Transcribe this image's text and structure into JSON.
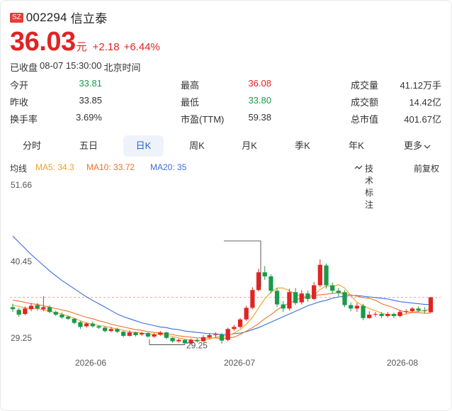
{
  "header": {
    "exchange": "SZ",
    "code": "002294",
    "name": "信立泰",
    "price": "36.03",
    "unit": "元",
    "change": "+2.18",
    "change_pct": "+6.44%",
    "status": "已收盘",
    "datetime": "08-07 15:30:00",
    "timezone": "北京时间"
  },
  "stats": [
    [
      {
        "label": "今开",
        "value": "33.81",
        "color": "green"
      },
      {
        "label": "最高",
        "value": "36.08",
        "color": "red"
      },
      {
        "label": "成交量",
        "value": "41.12万手",
        "color": "dark"
      }
    ],
    [
      {
        "label": "昨收",
        "value": "33.85",
        "color": "dark"
      },
      {
        "label": "最低",
        "value": "33.80",
        "color": "green"
      },
      {
        "label": "成交额",
        "value": "14.42亿",
        "color": "dark"
      }
    ],
    [
      {
        "label": "换手率",
        "value": "3.69%",
        "color": "dark"
      },
      {
        "label": "市盈(TTM)",
        "value": "59.38",
        "color": "dark"
      },
      {
        "label": "总市值",
        "value": "401.67亿",
        "color": "dark"
      }
    ]
  ],
  "tabs": [
    "分时",
    "五日",
    "日K",
    "周K",
    "月K",
    "季K",
    "年K",
    "更多"
  ],
  "active_tab": "日K",
  "ma": {
    "label": "均线",
    "ma5": "MA5: 34.3",
    "ma10": "MA10: 33.72",
    "ma20": "MA20: 35",
    "indicator": "技术标注",
    "adjust": "前复权"
  },
  "colors": {
    "up": "#e02424",
    "down": "#1a9a4a",
    "ma5": "#f0a020",
    "ma10": "#f07030",
    "ma20": "#3a6fd8",
    "accent": "#2a63c9"
  },
  "icons": [
    "chevron-down-icon",
    "wave-icon"
  ],
  "chart_data": {
    "type": "candlestick",
    "y_ticks": [
      "51.66",
      "40.45",
      "29.25"
    ],
    "x_ticks": [
      "2026-06",
      "2026-07",
      "2026-08"
    ],
    "ylim": [
      29.25,
      51.66
    ],
    "max_marker": "",
    "min_marker": "29.25",
    "last_close": 36.03,
    "candles": [
      [
        34.6,
        34.3,
        35.1,
        33.9
      ],
      [
        34.2,
        33.5,
        34.5,
        33.2
      ],
      [
        33.6,
        34.4,
        34.7,
        33.4
      ],
      [
        34.3,
        34.8,
        35.2,
        34.0
      ],
      [
        34.9,
        34.4,
        35.2,
        34.1
      ],
      [
        34.3,
        34.6,
        36.2,
        34.0
      ],
      [
        34.6,
        33.9,
        34.9,
        33.7
      ],
      [
        33.9,
        33.5,
        34.1,
        33.3
      ],
      [
        33.5,
        33.1,
        33.8,
        32.9
      ],
      [
        33.2,
        32.9,
        33.4,
        32.7
      ],
      [
        32.9,
        32.3,
        33.0,
        32.1
      ],
      [
        32.4,
        31.7,
        32.6,
        31.4
      ],
      [
        31.8,
        32.2,
        32.4,
        31.6
      ],
      [
        32.2,
        31.8,
        32.5,
        31.6
      ],
      [
        31.8,
        31.6,
        32.0,
        31.4
      ],
      [
        31.6,
        31.1,
        31.8,
        30.9
      ],
      [
        31.1,
        31.4,
        31.7,
        30.9
      ],
      [
        31.4,
        31.0,
        31.6,
        30.8
      ],
      [
        31.0,
        30.4,
        31.1,
        30.2
      ],
      [
        30.4,
        30.9,
        31.2,
        30.3
      ],
      [
        30.9,
        30.5,
        31.0,
        30.3
      ],
      [
        30.6,
        30.8,
        31.0,
        30.4
      ],
      [
        30.8,
        30.3,
        30.9,
        30.1
      ],
      [
        30.3,
        30.6,
        30.8,
        30.1
      ],
      [
        30.6,
        30.9,
        31.1,
        30.4
      ],
      [
        30.9,
        30.1,
        31.0,
        29.9
      ],
      [
        30.1,
        29.6,
        30.2,
        29.4
      ],
      [
        29.6,
        29.8,
        30.0,
        29.4
      ],
      [
        29.8,
        29.3,
        29.9,
        29.1
      ],
      [
        29.3,
        29.8,
        30.0,
        29.2
      ],
      [
        29.8,
        29.6,
        30.0,
        29.4
      ],
      [
        29.6,
        30.2,
        30.5,
        29.5
      ],
      [
        30.2,
        30.5,
        30.8,
        30.0
      ],
      [
        30.5,
        30.6,
        30.9,
        30.2
      ],
      [
        30.6,
        29.7,
        30.8,
        29.25
      ],
      [
        29.8,
        31.4,
        31.6,
        29.6
      ],
      [
        31.4,
        31.7,
        32.0,
        31.1
      ],
      [
        31.7,
        32.8,
        33.0,
        31.5
      ],
      [
        32.8,
        34.5,
        34.8,
        32.6
      ],
      [
        34.5,
        37.1,
        37.5,
        34.3
      ],
      [
        37.1,
        39.7,
        40.2,
        36.9
      ],
      [
        39.7,
        39.1,
        40.6,
        38.6
      ],
      [
        39.1,
        37.0,
        39.4,
        36.6
      ],
      [
        37.0,
        35.0,
        37.4,
        34.6
      ],
      [
        35.0,
        34.4,
        35.5,
        33.9
      ],
      [
        34.4,
        36.8,
        37.3,
        34.1
      ],
      [
        36.8,
        35.2,
        37.4,
        34.9
      ],
      [
        35.3,
        36.6,
        37.1,
        35.0
      ],
      [
        36.6,
        35.8,
        37.0,
        35.4
      ],
      [
        35.8,
        37.8,
        38.3,
        35.6
      ],
      [
        37.8,
        40.8,
        41.6,
        37.5
      ],
      [
        40.7,
        37.8,
        41.0,
        37.3
      ],
      [
        37.8,
        37.0,
        38.2,
        36.6
      ],
      [
        37.0,
        36.7,
        37.4,
        36.2
      ],
      [
        36.8,
        34.9,
        37.1,
        34.6
      ],
      [
        34.9,
        34.4,
        35.3,
        34.0
      ],
      [
        34.4,
        34.8,
        35.2,
        33.9
      ],
      [
        34.8,
        33.0,
        35.1,
        32.7
      ],
      [
        33.0,
        33.5,
        34.0,
        32.9
      ],
      [
        33.5,
        33.6,
        33.9,
        33.2
      ],
      [
        33.6,
        33.3,
        33.9,
        33.0
      ],
      [
        33.3,
        33.6,
        33.9,
        33.1
      ],
      [
        33.6,
        33.3,
        33.8,
        33.0
      ],
      [
        33.3,
        33.9,
        34.2,
        33.1
      ],
      [
        33.9,
        34.0,
        34.3,
        33.6
      ],
      [
        34.0,
        34.4,
        34.6,
        33.8
      ],
      [
        34.4,
        34.1,
        34.7,
        33.9
      ],
      [
        34.1,
        34.0,
        34.6,
        33.7
      ],
      [
        33.85,
        36.03,
        36.08,
        33.8
      ]
    ],
    "ma5": [
      34.9,
      34.7,
      34.5,
      34.4,
      34.4,
      34.2,
      34.0,
      33.8,
      33.6,
      33.3,
      33.0,
      32.6,
      32.3,
      32.1,
      31.9,
      31.8,
      31.6,
      31.4,
      31.2,
      31.0,
      30.9,
      30.8,
      30.7,
      30.6,
      30.6,
      30.5,
      30.3,
      30.1,
      29.9,
      29.8,
      29.7,
      29.8,
      29.9,
      30.2,
      30.3,
      30.5,
      30.8,
      31.3,
      32.1,
      33.1,
      34.5,
      35.8,
      36.8,
      37.4,
      37.4,
      37.0,
      36.5,
      36.1,
      35.8,
      36.3,
      37.2,
      37.7,
      37.6,
      37.9,
      37.4,
      36.3,
      35.3,
      34.8,
      34.4,
      34.1,
      33.7,
      33.5,
      33.5,
      33.5,
      33.6,
      33.8,
      34.0,
      34.1,
      34.3
    ],
    "ma10": [
      35.6,
      35.5,
      35.3,
      35.1,
      35.0,
      34.8,
      34.6,
      34.4,
      34.2,
      34.0,
      33.7,
      33.4,
      33.1,
      32.9,
      32.6,
      32.4,
      32.1,
      31.9,
      31.7,
      31.5,
      31.3,
      31.2,
      31.0,
      30.9,
      30.8,
      30.7,
      30.6,
      30.4,
      30.3,
      30.2,
      30.1,
      30.1,
      30.1,
      30.1,
      30.0,
      30.1,
      30.2,
      30.6,
      31.1,
      31.6,
      32.2,
      32.9,
      33.5,
      34.2,
      34.8,
      35.2,
      35.6,
      36.0,
      36.2,
      36.3,
      36.4,
      36.5,
      36.6,
      36.7,
      36.6,
      36.4,
      36.2,
      36.0,
      35.9,
      35.6,
      35.1,
      34.8,
      34.5,
      34.1,
      33.9,
      33.8,
      33.8,
      33.7,
      33.72
    ],
    "ma20": [
      45.0,
      44.1,
      43.2,
      42.3,
      41.5,
      40.7,
      39.9,
      39.2,
      38.5,
      37.9,
      37.3,
      36.7,
      36.1,
      35.6,
      35.1,
      34.6,
      34.1,
      33.6,
      33.2,
      32.9,
      32.6,
      32.3,
      32.1,
      31.9,
      31.7,
      31.6,
      31.4,
      31.3,
      31.1,
      31.0,
      30.9,
      30.8,
      30.7,
      30.7,
      30.6,
      30.6,
      30.7,
      30.8,
      31.0,
      31.3,
      31.6,
      32.0,
      32.4,
      32.8,
      33.2,
      33.6,
      34.0,
      34.4,
      34.8,
      35.1,
      35.4,
      35.6,
      35.9,
      36.1,
      36.2,
      36.3,
      36.3,
      36.2,
      36.1,
      36.0,
      35.9,
      35.8,
      35.6,
      35.4,
      35.3,
      35.2,
      35.1,
      35.0,
      35.0
    ]
  }
}
